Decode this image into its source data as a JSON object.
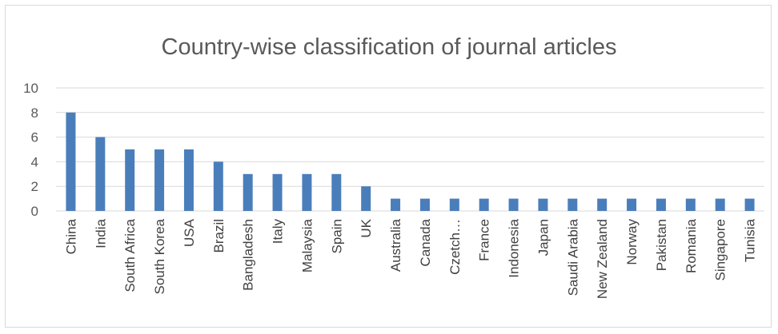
{
  "chart_data": {
    "type": "bar",
    "title": "Country-wise classification of journal articles",
    "xlabel": "",
    "ylabel": "",
    "ylim": [
      0,
      10
    ],
    "yticks": [
      0,
      2,
      4,
      6,
      8,
      10
    ],
    "grid": true,
    "legend": "none",
    "bar_color": "#4a7ebb",
    "grid_color": "#d9d9d9",
    "categories": [
      "China",
      "India",
      "South Africa",
      "South Korea",
      "USA",
      "Brazil",
      "Bangladesh",
      "Italy",
      "Malaysia",
      "Spain",
      "UK",
      "Australia",
      "Canada",
      "Czetch…",
      "France",
      "Indonesia",
      "Japan",
      "Saudi Arabia",
      "New Zealand",
      "Norway",
      "Pakistan",
      "Romania",
      "Singapore",
      "Tunisia"
    ],
    "values": [
      8,
      6,
      5,
      5,
      5,
      4,
      3,
      3,
      3,
      3,
      2,
      1,
      1,
      1,
      1,
      1,
      1,
      1,
      1,
      1,
      1,
      1,
      1,
      1
    ]
  }
}
